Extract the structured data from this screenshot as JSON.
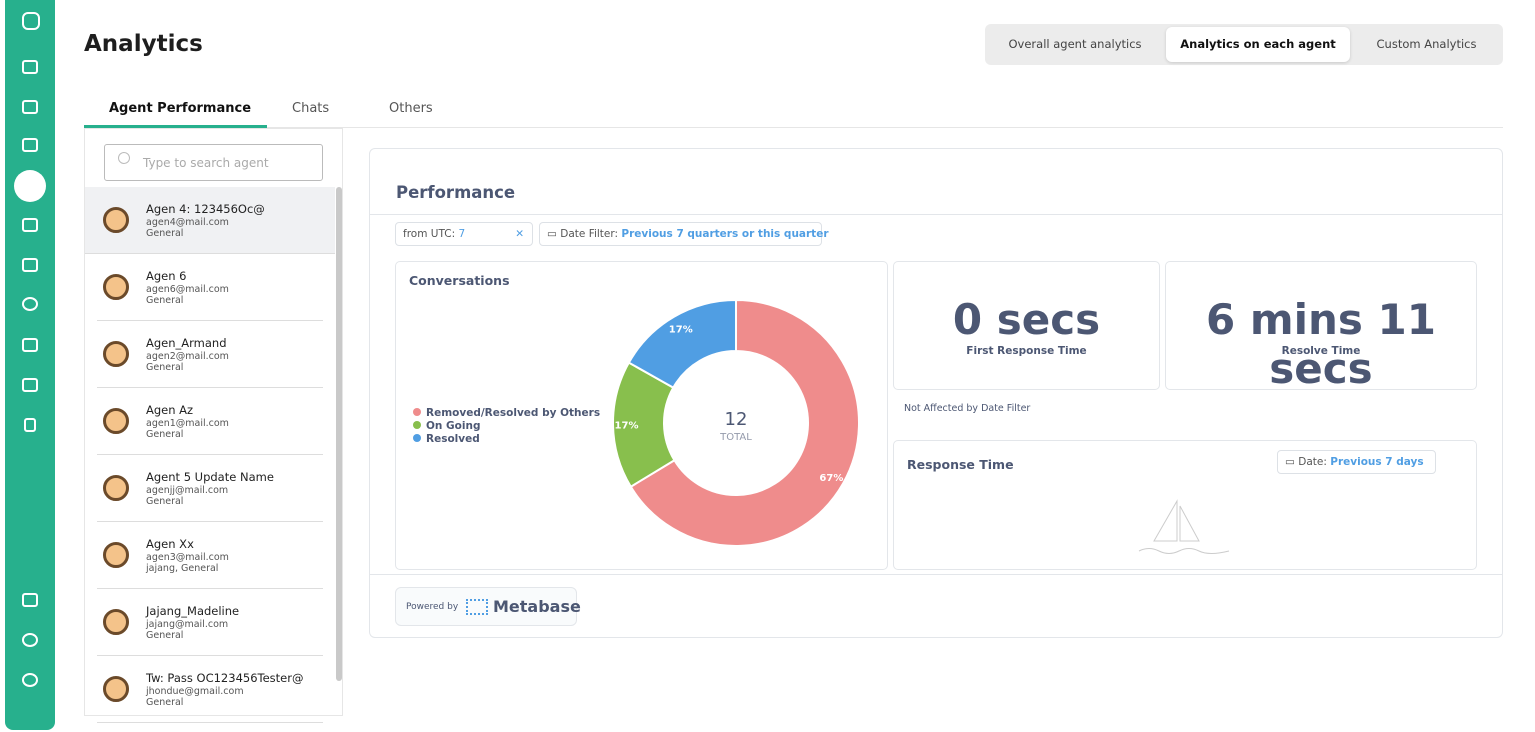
{
  "header": {
    "title": "Analytics",
    "tabs": [
      "Overall agent analytics",
      "Analytics on each agent",
      "Custom Analytics"
    ]
  },
  "subtabs": [
    "Agent Performance",
    "Chats",
    "Others"
  ],
  "search_placeholder": "Type to search agent",
  "agents": [
    {
      "name": "Agen 4: 123456Oc@",
      "email": "agen4@mail.com",
      "group": "General"
    },
    {
      "name": "Agen 6",
      "email": "agen6@mail.com",
      "group": "General"
    },
    {
      "name": "Agen_Armand",
      "email": "agen2@mail.com",
      "group": "General"
    },
    {
      "name": "Agen Az",
      "email": "agen1@mail.com",
      "group": "General"
    },
    {
      "name": "Agent 5 Update Name",
      "email": "agenjj@mail.com",
      "group": "General"
    },
    {
      "name": "Agen Xx",
      "email": "agen3@mail.com",
      "group": "jajang, General"
    },
    {
      "name": "Jajang_Madeline",
      "email": "jajang@mail.com",
      "group": "General"
    },
    {
      "name": "Tw: Pass OC123456Tester@",
      "email": "jhondue@gmail.com",
      "group": "General"
    }
  ],
  "dashboard": {
    "title": "Performance",
    "filters": [
      {
        "label": "from UTC:",
        "value": "7"
      },
      {
        "label": "Date Filter:",
        "value": "Previous 7 quarters or this quarter"
      }
    ],
    "first_response": {
      "value": "0 secs",
      "label": "First Response Time"
    },
    "resolve": {
      "value": "6 mins 11 secs",
      "label": "Resolve Time"
    },
    "note": "Not Affected by Date Filter",
    "response_time": {
      "title": "Response Time",
      "filter_label": "Date:",
      "filter_value": "Previous 7 days"
    },
    "footer": {
      "powered_by": "Powered by",
      "brand": "Metabase"
    }
  },
  "chart_data": {
    "type": "pie",
    "title": "Conversations",
    "categories": [
      "Removed/Resolved by Others",
      "On Going",
      "Resolved"
    ],
    "values": [
      67,
      17,
      17
    ],
    "value_labels": [
      "67%",
      "17%",
      "17%"
    ],
    "colors": [
      "#ef8c8c",
      "#88bf4d",
      "#509ee3"
    ],
    "total": 12,
    "total_label": "TOTAL"
  }
}
